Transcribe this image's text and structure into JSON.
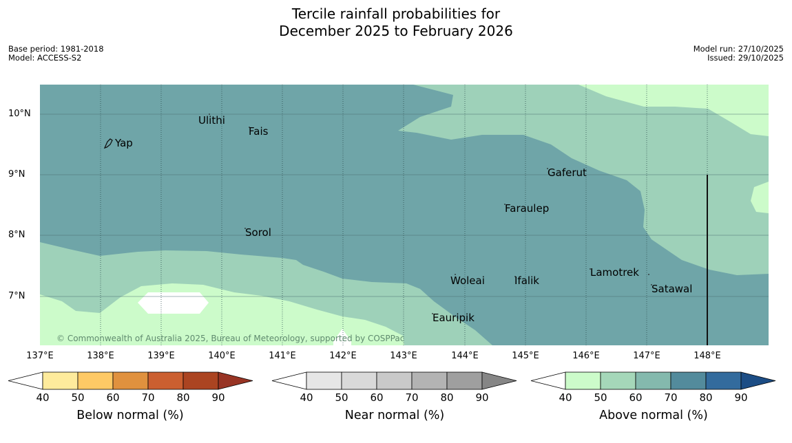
{
  "title": {
    "line1": "Tercile rainfall probabilities for",
    "line2": "December 2025 to February 2026"
  },
  "meta": {
    "base_period": "Base period: 1981-2018",
    "model": "Model: ACCESS-S2",
    "model_run": "Model run: 27/10/2025",
    "issued": "Issued: 29/10/2025"
  },
  "map": {
    "latitudes": [
      "10°N",
      "9°N",
      "8°N",
      "7°N"
    ],
    "longitudes": [
      "137°E",
      "138°E",
      "139°E",
      "140°E",
      "141°E",
      "142°E",
      "143°E",
      "144°E",
      "145°E",
      "146°E",
      "147°E",
      "148°E"
    ],
    "places": [
      "Ulithi",
      "Fais",
      "Yap",
      "Gaferut",
      "Faraulep",
      "Sorol",
      "Lamotrek",
      "Woleai",
      "Ifalik",
      "Satawal",
      "Eauripik"
    ],
    "copyright": "© Commonwealth of Australia 2025, Bureau of Meteorology, supported by COSPPac",
    "colors": {
      "above_60_70": "#6fa5a8",
      "above_50_60": "#9ed1b9",
      "above_40_50": "#ccfbca"
    }
  },
  "colorbars": [
    {
      "title": "Below normal (%)",
      "ticks": [
        "40",
        "50",
        "60",
        "70",
        "80",
        "90"
      ],
      "colors": [
        "#ffffff",
        "#feeb9c",
        "#fec965",
        "#e0913e",
        "#cb5f30",
        "#ab4421",
        "#983424"
      ]
    },
    {
      "title": "Near normal (%)",
      "ticks": [
        "40",
        "50",
        "60",
        "70",
        "80",
        "90"
      ],
      "colors": [
        "#ffffff",
        "#e6e6e6",
        "#d9d9d9",
        "#c9c9c9",
        "#b3b3b3",
        "#9f9f9f",
        "#868686"
      ]
    },
    {
      "title": "Above normal (%)",
      "ticks": [
        "40",
        "50",
        "60",
        "70",
        "80",
        "90"
      ],
      "colors": [
        "#ffffff",
        "#ccfbca",
        "#a5d7b9",
        "#84b9ad",
        "#538b9c",
        "#336b9d",
        "#1c4d85"
      ]
    }
  ]
}
